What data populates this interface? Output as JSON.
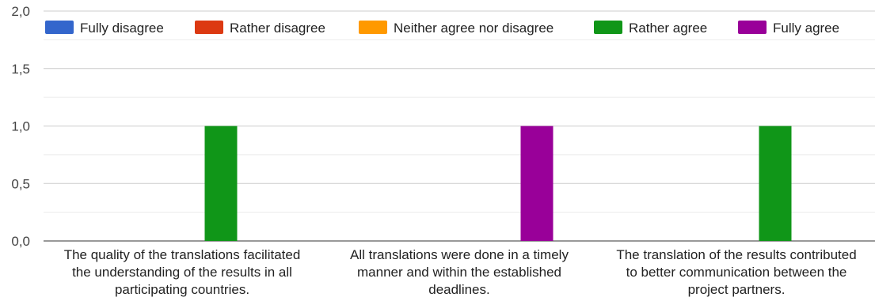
{
  "chart_data": {
    "type": "bar",
    "categories": [
      [
        "The quality of the translations facilitated",
        "the understanding of the results in all",
        "participating countries."
      ],
      [
        "All translations were done in a timely",
        "manner and within the established",
        "deadlines."
      ],
      [
        "The translation of the results contributed",
        "to better communication between the",
        "project partners."
      ]
    ],
    "series": [
      {
        "name": "Fully disagree",
        "color": "#3366cc",
        "values": [
          0,
          0,
          0
        ]
      },
      {
        "name": "Rather disagree",
        "color": "#dc3912",
        "values": [
          0,
          0,
          0
        ]
      },
      {
        "name": "Neither agree nor disagree",
        "color": "#ff9900",
        "values": [
          0,
          0,
          0
        ]
      },
      {
        "name": "Rather agree",
        "color": "#109618",
        "values": [
          1,
          0,
          1
        ]
      },
      {
        "name": "Fully agree",
        "color": "#990099",
        "values": [
          0,
          1,
          0
        ]
      }
    ],
    "y_ticks": [
      "0,0",
      "0,5",
      "1,0",
      "1,5",
      "2,0"
    ],
    "ylim": [
      0,
      2
    ],
    "grid": true,
    "legend_position": "top"
  }
}
